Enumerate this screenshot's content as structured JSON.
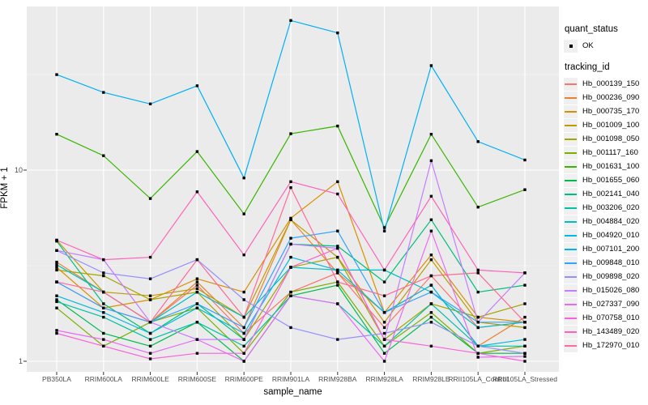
{
  "figure": {
    "panel_bg": "#EBEBEB",
    "grid_color": "#FFFFFF",
    "point_color": "#000000",
    "tick_color": "#333333",
    "axis": {
      "x_title": "sample_name",
      "y_title": "FPKM + 1",
      "y_tick_labels": [
        "1",
        "10"
      ]
    },
    "legend": {
      "quant_status_title": "quant_status",
      "quant_status_item": "OK",
      "tracking_title": "tracking_id"
    }
  },
  "chart_data": {
    "type": "line",
    "title": "",
    "xlabel": "sample_name",
    "ylabel": "FPKM + 1",
    "y_scale": "log10",
    "ylim": [
      0.88,
      72
    ],
    "y_major_gridlines": [
      1,
      10
    ],
    "y_minor_gridlines": [
      3.162,
      31.623
    ],
    "grid": true,
    "legend_position": "right",
    "point_marker": {
      "legend_group": "quant_status",
      "label": "OK",
      "color": "#000000"
    },
    "categories": [
      "PB350LA",
      "RRIM600LA",
      "RRIM600LE",
      "RRIM600SE",
      "RRIM600PE",
      "RRIM901LA",
      "RRIM928BA",
      "RRIM928LA",
      "RRIM928LE",
      "RRII105LA_Control",
      "RRII105LA_Stressed"
    ],
    "series": [
      {
        "name": "Hb_000139_150",
        "color": "#F8766D",
        "values": [
          2.6,
          1.9,
          1.6,
          2.5,
          1.4,
          2.3,
          2.9,
          1.5,
          2.8,
          1.5,
          1.6
        ]
      },
      {
        "name": "Hb_000236_090",
        "color": "#EA8331",
        "values": [
          3.3,
          2.3,
          1.6,
          2.6,
          1.5,
          5.5,
          2.9,
          1.8,
          2.5,
          1.2,
          1.7
        ]
      },
      {
        "name": "Hb_000735_170",
        "color": "#D89000",
        "values": [
          3.1,
          1.9,
          2.1,
          2.7,
          2.3,
          5.6,
          8.7,
          1.8,
          3.6,
          1.7,
          1.6
        ]
      },
      {
        "name": "Hb_001009_100",
        "color": "#C09B00",
        "values": [
          4.3,
          2.3,
          2.2,
          2.4,
          1.7,
          5.5,
          3.5,
          1.6,
          3.4,
          1.6,
          1.5
        ]
      },
      {
        "name": "Hb_001098_050",
        "color": "#A3A500",
        "values": [
          3.0,
          2.8,
          2.1,
          2.3,
          1.3,
          3.1,
          3.5,
          1.3,
          2.0,
          1.7,
          2.0
        ]
      },
      {
        "name": "Hb_001117_160",
        "color": "#7CAE00",
        "values": [
          1.9,
          1.2,
          1.6,
          1.9,
          1.1,
          2.3,
          2.6,
          1.2,
          1.8,
          1.1,
          1.2
        ]
      },
      {
        "name": "Hb_001631_100",
        "color": "#39B600",
        "values": [
          15.4,
          11.9,
          7.1,
          12.5,
          5.9,
          15.5,
          17.0,
          5.0,
          15.4,
          6.4,
          7.9
        ]
      },
      {
        "name": "Hb_001655_060",
        "color": "#00BB4E",
        "values": [
          2.1,
          1.4,
          1.2,
          1.6,
          1.0,
          2.2,
          2.5,
          1.1,
          1.7,
          1.1,
          1.1
        ]
      },
      {
        "name": "Hb_002141_040",
        "color": "#00BF7D",
        "values": [
          4.25,
          2.0,
          1.4,
          2.0,
          1.3,
          4.1,
          4.0,
          2.6,
          5.5,
          2.3,
          2.5
        ]
      },
      {
        "name": "Hb_003206_020",
        "color": "#00C1A3",
        "values": [
          2.05,
          1.7,
          1.3,
          1.6,
          1.2,
          2.2,
          2.0,
          1.2,
          2.0,
          1.2,
          1.2
        ]
      },
      {
        "name": "Hb_004884_020",
        "color": "#00BFC4",
        "values": [
          3.2,
          2.3,
          1.6,
          2.3,
          1.7,
          3.1,
          3.0,
          3.0,
          2.3,
          1.5,
          1.6
        ]
      },
      {
        "name": "Hb_004920_010",
        "color": "#00BAE0",
        "values": [
          2.2,
          1.8,
          1.4,
          1.9,
          1.4,
          3.5,
          3.0,
          1.8,
          2.5,
          1.2,
          1.3
        ]
      },
      {
        "name": "Hb_007101_200",
        "color": "#00B0F6",
        "values": [
          31.6,
          25.5,
          22.2,
          27.6,
          9.1,
          60.6,
          52.2,
          4.8,
          35.2,
          14.1,
          11.3
        ]
      },
      {
        "name": "Hb_009848_010",
        "color": "#35A2FF",
        "values": [
          2.6,
          1.9,
          1.6,
          2.0,
          1.5,
          4.4,
          4.8,
          1.8,
          2.3,
          1.6,
          1.6
        ]
      },
      {
        "name": "Hb_009898_020",
        "color": "#9590FF",
        "values": [
          3.8,
          2.9,
          2.7,
          3.4,
          2.1,
          1.5,
          1.3,
          1.4,
          1.6,
          1.2,
          1.1
        ]
      },
      {
        "name": "Hb_015026_080",
        "color": "#C77CFF",
        "values": [
          3.8,
          3.4,
          1.6,
          1.3,
          1.3,
          4.1,
          3.9,
          1.3,
          11.2,
          1.6,
          2.9
        ]
      },
      {
        "name": "Hb_027337_090",
        "color": "#E76BF3",
        "values": [
          1.45,
          1.3,
          1.1,
          1.3,
          1.0,
          2.2,
          2.0,
          1.0,
          4.8,
          1.05,
          1.06
        ]
      },
      {
        "name": "Hb_070758_010",
        "color": "#FA62DB",
        "values": [
          1.4,
          1.2,
          1.03,
          1.1,
          1.1,
          3.1,
          3.9,
          1.3,
          1.2,
          1.1,
          1.0
        ]
      },
      {
        "name": "Hb_143489_020",
        "color": "#FF62BC",
        "values": [
          4.3,
          3.4,
          3.5,
          7.7,
          3.6,
          8.7,
          7.5,
          3.0,
          7.3,
          3.0,
          2.9
        ]
      },
      {
        "name": "Hb_172970_010",
        "color": "#FF6A98",
        "values": [
          2.6,
          2.3,
          1.6,
          3.4,
          1.7,
          8.1,
          2.6,
          2.2,
          2.8,
          2.9,
          1.6
        ]
      }
    ]
  }
}
